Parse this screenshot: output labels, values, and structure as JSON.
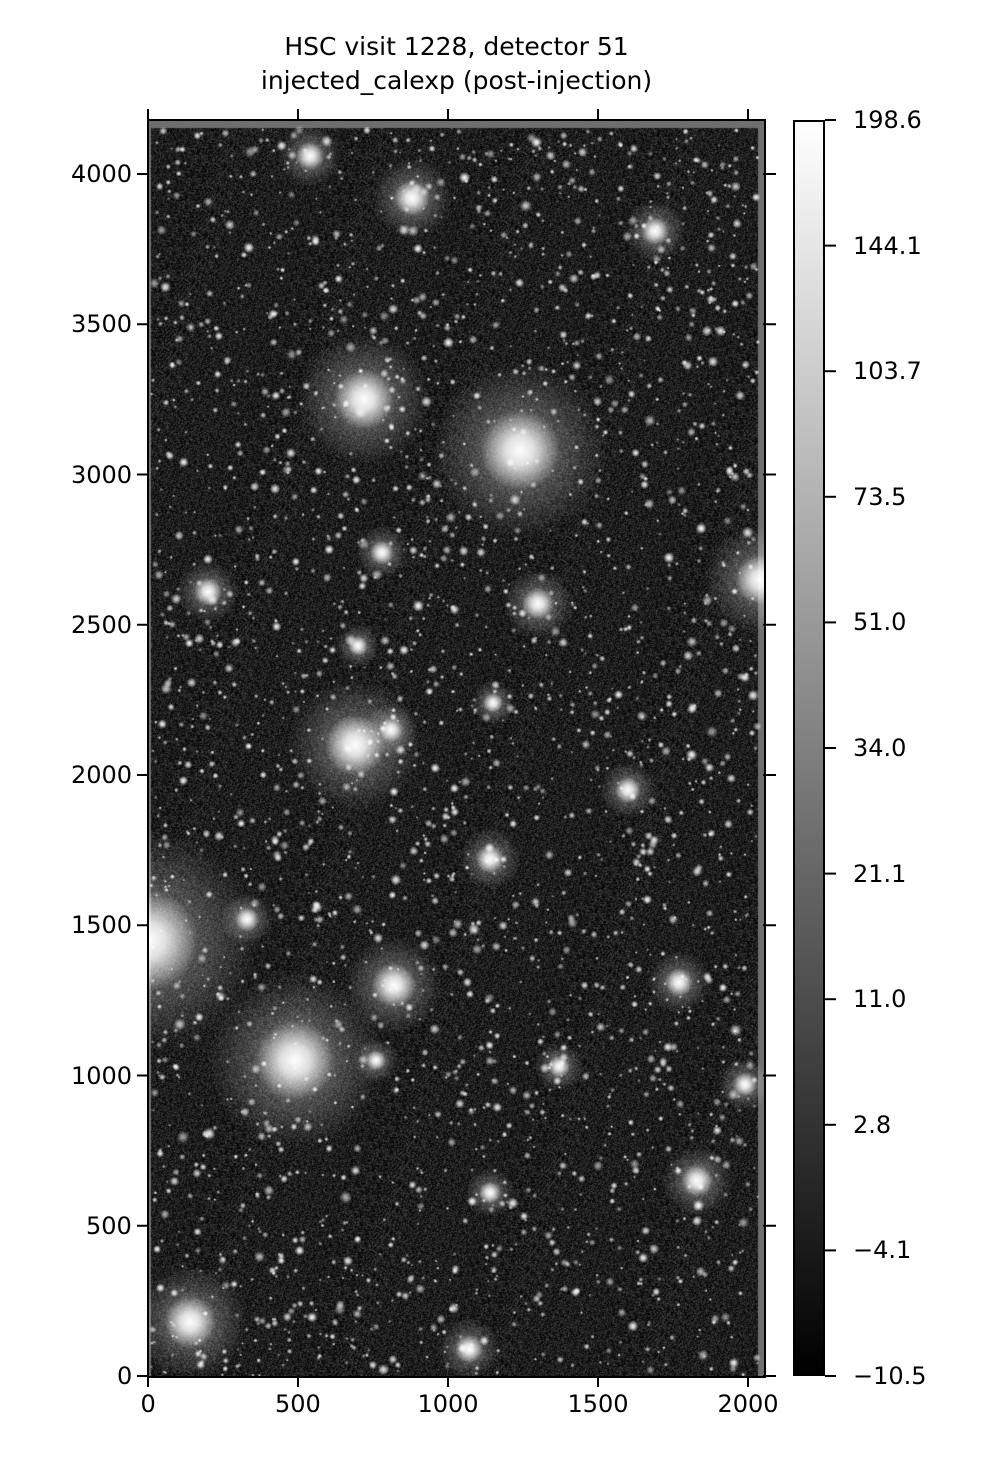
{
  "chart_data": {
    "type": "heatmap",
    "title": "HSC visit 1228, detector 51",
    "subtitle": "injected_calexp (post-injection)",
    "xlabel": "",
    "ylabel": "",
    "xlim": [
      0,
      2048
    ],
    "ylim": [
      0,
      4176
    ],
    "x_ticks": [
      "0",
      "500",
      "1000",
      "1500",
      "2000"
    ],
    "y_ticks": [
      "0",
      "500",
      "1000",
      "1500",
      "2000",
      "2500",
      "3000",
      "3500",
      "4000"
    ],
    "colormap": "gray",
    "colorbar": {
      "range": [
        -10.5,
        198.6
      ],
      "scale": "asinh-like stretch",
      "ticks": [
        "198.6",
        "144.1",
        "103.7",
        "73.5",
        "51.0",
        "34.0",
        "21.1",
        "11.0",
        "2.8",
        "−4.1",
        "−10.5"
      ]
    },
    "grid": false,
    "background_color": "#1e1e1e",
    "border_color": "#6e6e6e"
  }
}
